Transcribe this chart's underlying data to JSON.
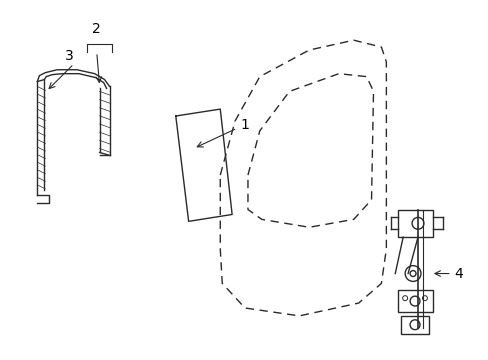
{
  "background_color": "#ffffff",
  "line_color": "#2a2a2a",
  "label_color": "#000000",
  "figsize": [
    4.89,
    3.6
  ],
  "dpi": 100,
  "lw": 1.0
}
